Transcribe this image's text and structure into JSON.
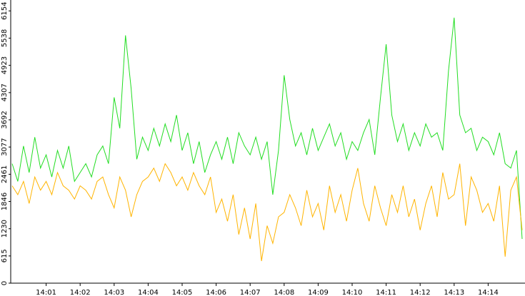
{
  "chart_data": {
    "type": "line",
    "categories": [
      null,
      null,
      null,
      null,
      null,
      null,
      "14:01",
      null,
      null,
      null,
      null,
      null,
      "14:02",
      null,
      null,
      null,
      null,
      null,
      "14:03",
      null,
      null,
      null,
      null,
      null,
      "14:04",
      null,
      null,
      null,
      null,
      null,
      "14:05",
      null,
      null,
      null,
      null,
      null,
      "14:06",
      null,
      null,
      null,
      null,
      null,
      "14:07",
      null,
      null,
      null,
      null,
      null,
      "14:08",
      null,
      null,
      null,
      null,
      null,
      "14:09",
      null,
      null,
      null,
      null,
      null,
      "14:10",
      null,
      null,
      null,
      null,
      null,
      "14:11",
      null,
      null,
      null,
      null,
      null,
      "14:12",
      null,
      null,
      null,
      null,
      null,
      "14:13",
      null,
      null,
      null,
      null,
      null,
      "14:14",
      null,
      null,
      null,
      null,
      null,
      null
    ],
    "series": [
      {
        "color": "#22dd22",
        "values": [
          2700,
          2300,
          3100,
          2500,
          3300,
          2600,
          2900,
          2400,
          3000,
          2600,
          3100,
          2300,
          2500,
          2700,
          2400,
          2900,
          3100,
          2700,
          4200,
          3500,
          5600,
          4400,
          2800,
          3300,
          3000,
          3500,
          3100,
          3600,
          3200,
          3800,
          3000,
          3400,
          2700,
          3200,
          2500,
          2900,
          3200,
          2800,
          3300,
          2700,
          3400,
          3100,
          2900,
          3300,
          2800,
          3200,
          2000,
          3000,
          4700,
          3700,
          3100,
          3400,
          2900,
          3500,
          3000,
          3300,
          3600,
          3100,
          3400,
          2800,
          3200,
          3000,
          3400,
          3700,
          2900,
          4200,
          5400,
          3800,
          3200,
          3600,
          3000,
          3400,
          3100,
          3600,
          3300,
          3400,
          3000,
          4800,
          6000,
          3800,
          3400,
          3500,
          3000,
          3300,
          3200,
          2900,
          3400,
          2700,
          2600,
          3000,
          1000
        ]
      },
      {
        "color": "#ffb400",
        "values": [
          2200,
          2000,
          2300,
          1800,
          2400,
          2100,
          2300,
          2000,
          2500,
          2200,
          2100,
          1900,
          2200,
          2100,
          1900,
          2300,
          2400,
          2000,
          1700,
          2400,
          2100,
          1500,
          2000,
          2300,
          2400,
          2600,
          2300,
          2700,
          2500,
          2200,
          2400,
          2100,
          2500,
          2200,
          2000,
          2400,
          1600,
          1900,
          1400,
          2000,
          1100,
          1700,
          1000,
          1800,
          500,
          1300,
          900,
          1500,
          1600,
          2000,
          1700,
          1300,
          2100,
          1500,
          1800,
          1200,
          2200,
          1600,
          2000,
          1400,
          2100,
          2600,
          1800,
          1400,
          2200,
          1700,
          1300,
          2000,
          1600,
          2200,
          1500,
          1900,
          1200,
          1800,
          2200,
          1500,
          2500,
          1900,
          2000,
          2700,
          1300,
          2400,
          2100,
          1600,
          1800,
          1400,
          2200,
          600,
          2100,
          2400,
          1200
        ]
      }
    ],
    "ylim": [
      0,
      6400
    ],
    "yticks": [
      0,
      615,
      1230,
      1846,
      2461,
      3077,
      3692,
      4307,
      4923,
      5538,
      6154
    ]
  }
}
